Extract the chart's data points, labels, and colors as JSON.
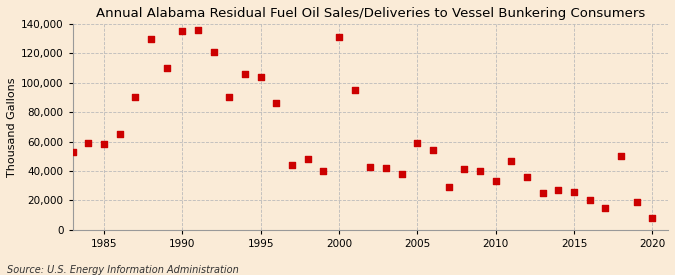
{
  "title": "Annual Alabama Residual Fuel Oil Sales/Deliveries to Vessel Bunkering Consumers",
  "ylabel": "Thousand Gallons",
  "source": "Source: U.S. Energy Information Administration",
  "background_color": "#faebd7",
  "plot_background_color": "#faebd7",
  "marker_color": "#cc0000",
  "years": [
    1983,
    1984,
    1985,
    1986,
    1987,
    1988,
    1989,
    1990,
    1991,
    1992,
    1993,
    1994,
    1995,
    1996,
    1997,
    1998,
    1999,
    2000,
    2001,
    2002,
    2003,
    2004,
    2005,
    2006,
    2007,
    2008,
    2009,
    2010,
    2011,
    2012,
    2013,
    2014,
    2015,
    2016,
    2017,
    2018,
    2019,
    2020
  ],
  "values": [
    53000,
    59000,
    58000,
    65000,
    90000,
    130000,
    110000,
    135000,
    136000,
    121000,
    90000,
    106000,
    104000,
    86000,
    44000,
    48000,
    40000,
    131000,
    95000,
    43000,
    42000,
    38000,
    59000,
    54000,
    29000,
    41000,
    40000,
    33000,
    47000,
    36000,
    25000,
    27000,
    26000,
    20000,
    15000,
    50000,
    19000,
    8000
  ],
  "ylim": [
    0,
    140000
  ],
  "xlim": [
    1983,
    2021
  ],
  "yticks": [
    0,
    20000,
    40000,
    60000,
    80000,
    100000,
    120000,
    140000
  ],
  "xticks": [
    1985,
    1990,
    1995,
    2000,
    2005,
    2010,
    2015,
    2020
  ],
  "grid_color": "#bbbbbb",
  "title_fontsize": 9.5,
  "label_fontsize": 8,
  "tick_fontsize": 7.5,
  "source_fontsize": 7
}
